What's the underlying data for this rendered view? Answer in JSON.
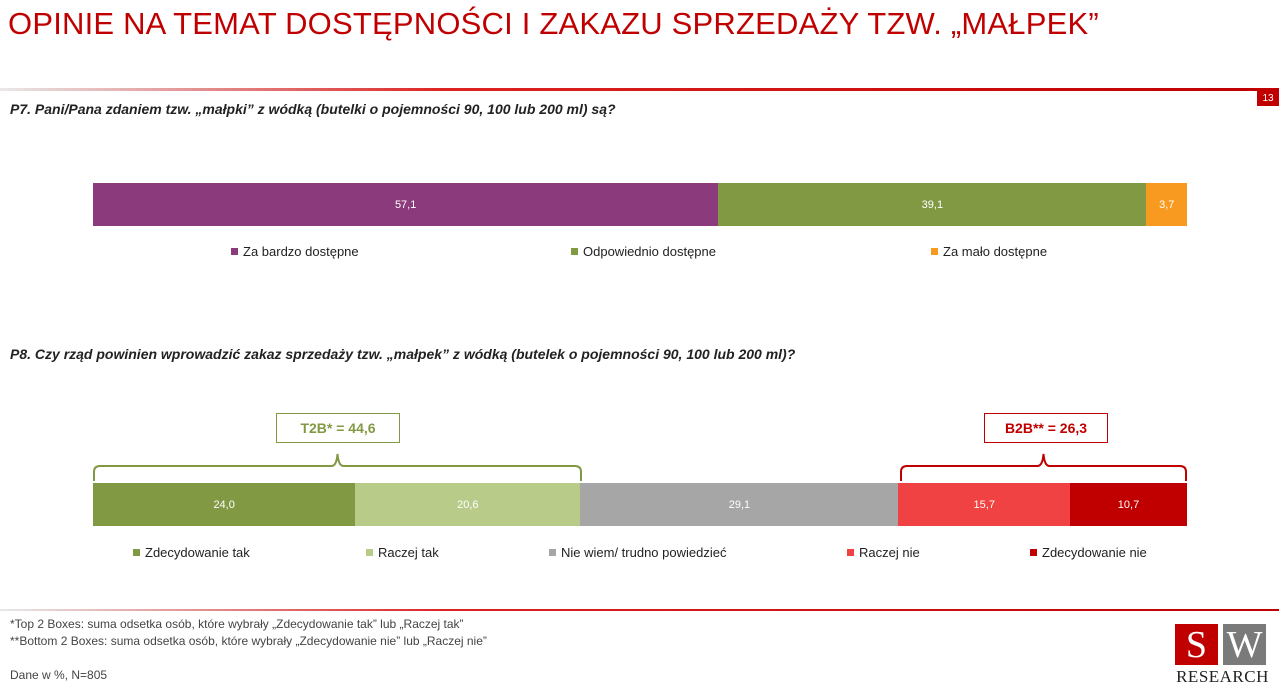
{
  "title": "OPINIE NA TEMAT DOSTĘPNOŚCI I ZAKAZU SPRZEDAŻY TZW. „MAŁPEK”",
  "page_number": "13",
  "colors": {
    "accent": "#c00000",
    "purple": "#8b3a7b",
    "green": "#829944",
    "light_green": "#b9cb89",
    "orange": "#f79a1f",
    "gray": "#a6a6a6",
    "light_red": "#f04242",
    "dark_red": "#c00000"
  },
  "p7": {
    "question": "P7. Pani/Pana zdaniem tzw. „małpki” z wódką (butelki o pojemności 90, 100 lub 200 ml) są?"
  },
  "p8": {
    "question": "P8. Czy rząd powinien wprowadzić zakaz sprzedaży tzw. „małpek” z wódką (butelek o pojemności 90, 100 lub 200 ml)?",
    "t2b_label": "T2B* = 44,6",
    "b2b_label": "B2B** = 26,3"
  },
  "chart_data": [
    {
      "type": "bar",
      "stacked": true,
      "orientation": "horizontal",
      "series": [
        {
          "name": "Za bardzo dostępne",
          "value": 57.1,
          "label": "57,1",
          "color": "#8b3a7b"
        },
        {
          "name": "Odpowiednio dostępne",
          "value": 39.1,
          "label": "39,1",
          "color": "#829944"
        },
        {
          "name": "Za mało dostępne",
          "value": 3.7,
          "label": "3,7",
          "color": "#f79a1f"
        }
      ],
      "legend_position": "bottom"
    },
    {
      "type": "bar",
      "stacked": true,
      "orientation": "horizontal",
      "series": [
        {
          "name": "Zdecydowanie tak",
          "value": 24.0,
          "label": "24,0",
          "color": "#829944"
        },
        {
          "name": "Raczej tak",
          "value": 20.6,
          "label": "20,6",
          "color": "#b9cb89"
        },
        {
          "name": "Nie wiem/ trudno powiedzieć",
          "value": 29.1,
          "label": "29,1",
          "color": "#a6a6a6"
        },
        {
          "name": "Raczej nie",
          "value": 15.7,
          "label": "15,7",
          "color": "#f04242"
        },
        {
          "name": "Zdecydowanie nie",
          "value": 10.7,
          "label": "10,7",
          "color": "#c00000"
        }
      ],
      "legend_position": "bottom"
    }
  ],
  "footnotes": {
    "t2b": "*Top 2 Boxes: suma odsetka osób, które wybrały „Zdecydowanie tak” lub „Raczej tak”",
    "b2b": "**Bottom 2 Boxes: suma odsetka osób, które wybrały „Zdecydowanie nie” lub „Raczej nie”",
    "base": "Dane w %, N=805"
  },
  "logo": {
    "letter_s": "S",
    "letter_w": "W",
    "word": "RESEARCH"
  }
}
